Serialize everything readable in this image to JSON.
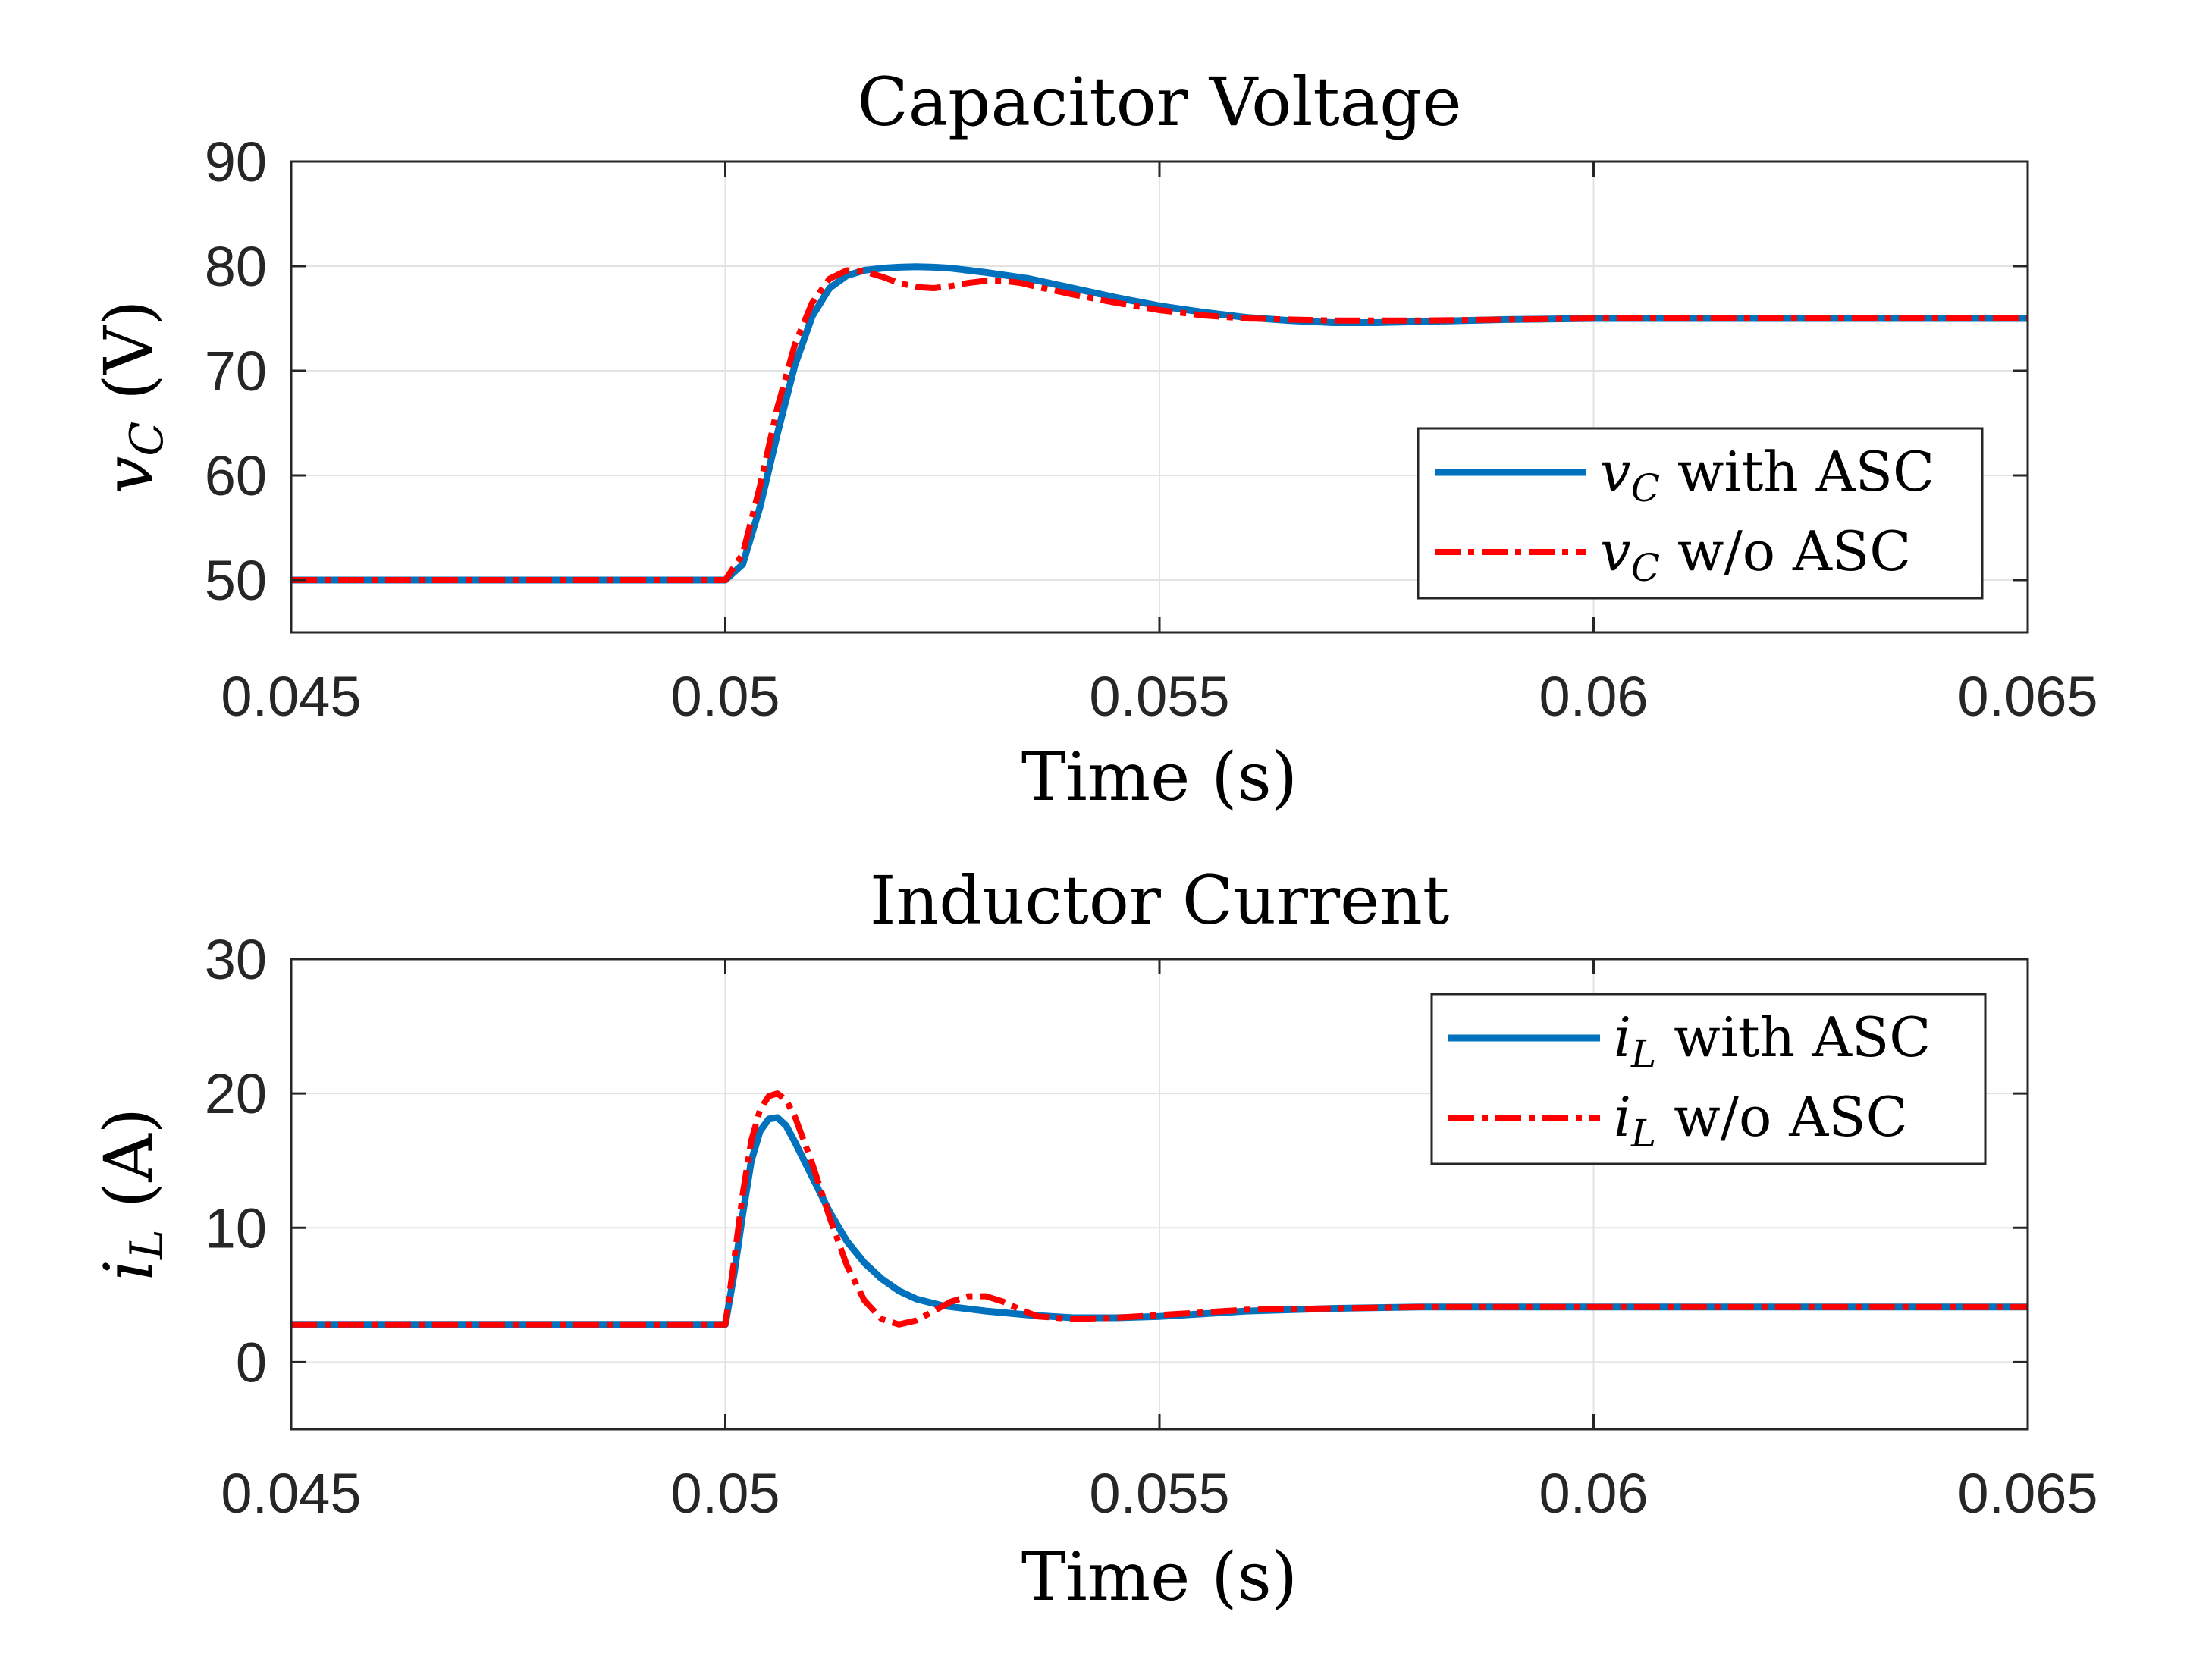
{
  "chart_data": [
    {
      "type": "line",
      "title": "Capacitor Voltage",
      "xlabel": "Time (s)",
      "ylabel_symbol": "v",
      "ylabel_subscript": "C",
      "ylabel_unit": "(V)",
      "xlim": [
        0.045,
        0.065
      ],
      "ylim": [
        45,
        90
      ],
      "xticks": [
        0.045,
        0.05,
        0.055,
        0.06,
        0.065
      ],
      "xtick_labels": [
        "0.045",
        "0.05",
        "0.055",
        "0.06",
        "0.065"
      ],
      "yticks": [
        50,
        60,
        70,
        80,
        90
      ],
      "ytick_labels": [
        "50",
        "60",
        "70",
        "80",
        "90"
      ],
      "grid": true,
      "legend_position": "lower-right",
      "series": [
        {
          "name": "with ASC",
          "symbol": "v",
          "subscript": "C",
          "label_text": "with ASC",
          "color": "#0072BD",
          "style": "solid",
          "x": [
            0.045,
            0.05,
            0.0502,
            0.0504,
            0.0506,
            0.0508,
            0.051,
            0.0512,
            0.0514,
            0.0516,
            0.0518,
            0.052,
            0.0522,
            0.0524,
            0.0526,
            0.0528,
            0.053,
            0.0535,
            0.054,
            0.0545,
            0.055,
            0.0555,
            0.056,
            0.0565,
            0.057,
            0.0575,
            0.058,
            0.059,
            0.06,
            0.062,
            0.065
          ],
          "y": [
            50,
            50,
            51.5,
            57,
            64,
            70.5,
            75.2,
            77.9,
            79.1,
            79.6,
            79.8,
            79.9,
            79.95,
            79.9,
            79.8,
            79.6,
            79.4,
            78.8,
            77.9,
            77,
            76.2,
            75.6,
            75.1,
            74.8,
            74.6,
            74.6,
            74.7,
            74.9,
            75,
            75,
            75
          ]
        },
        {
          "name": "w/o ASC",
          "symbol": "v",
          "subscript": "C",
          "label_text": "w/o ASC",
          "color": "#FF0000",
          "style": "dashdot",
          "x": [
            0.045,
            0.05,
            0.0502,
            0.0504,
            0.0506,
            0.0508,
            0.051,
            0.0512,
            0.0514,
            0.0516,
            0.0518,
            0.052,
            0.0522,
            0.0524,
            0.0526,
            0.0528,
            0.053,
            0.0532,
            0.0534,
            0.0536,
            0.054,
            0.0545,
            0.055,
            0.0555,
            0.056,
            0.057,
            0.058,
            0.06,
            0.065
          ],
          "y": [
            50,
            50,
            52.5,
            59,
            66.5,
            72.5,
            76.5,
            78.8,
            79.6,
            79.5,
            79,
            78.4,
            78,
            77.9,
            78.1,
            78.4,
            78.6,
            78.6,
            78.4,
            78,
            77.3,
            76.5,
            75.8,
            75.3,
            75,
            74.8,
            74.8,
            75,
            75
          ]
        }
      ]
    },
    {
      "type": "line",
      "title": "Inductor Current",
      "xlabel": "Time (s)",
      "ylabel_symbol": "i",
      "ylabel_subscript": "L",
      "ylabel_unit": "(A)",
      "xlim": [
        0.045,
        0.065
      ],
      "ylim": [
        -5,
        30
      ],
      "xticks": [
        0.045,
        0.05,
        0.055,
        0.06,
        0.065
      ],
      "xtick_labels": [
        "0.045",
        "0.05",
        "0.055",
        "0.06",
        "0.065"
      ],
      "yticks": [
        0,
        10,
        20,
        30
      ],
      "ytick_labels": [
        "0",
        "10",
        "20",
        "30"
      ],
      "grid": true,
      "legend_position": "top-right",
      "series": [
        {
          "name": "with ASC",
          "symbol": "i",
          "subscript": "L",
          "label_text": "with ASC",
          "color": "#0072BD",
          "style": "solid",
          "x": [
            0.045,
            0.05,
            0.0501,
            0.0502,
            0.0503,
            0.0504,
            0.0505,
            0.0506,
            0.0507,
            0.0508,
            0.051,
            0.0512,
            0.0514,
            0.0516,
            0.0518,
            0.052,
            0.0522,
            0.0525,
            0.053,
            0.0535,
            0.054,
            0.0545,
            0.055,
            0.0555,
            0.056,
            0.057,
            0.058,
            0.059,
            0.06,
            0.062,
            0.065
          ],
          "y": [
            2.8,
            2.8,
            6.5,
            11,
            15,
            17.2,
            18.1,
            18.2,
            17.6,
            16.4,
            13.8,
            11.2,
            9,
            7.4,
            6.2,
            5.3,
            4.7,
            4.2,
            3.8,
            3.5,
            3.3,
            3.3,
            3.4,
            3.6,
            3.8,
            4,
            4.1,
            4.1,
            4.1,
            4.1,
            4.1
          ]
        },
        {
          "name": "w/o ASC",
          "symbol": "i",
          "subscript": "L",
          "label_text": "w/o ASC",
          "color": "#FF0000",
          "style": "dashdot",
          "x": [
            0.045,
            0.05,
            0.0501,
            0.0502,
            0.0503,
            0.0504,
            0.0505,
            0.0506,
            0.0507,
            0.0508,
            0.051,
            0.0512,
            0.0514,
            0.0516,
            0.0518,
            0.052,
            0.0522,
            0.0524,
            0.0526,
            0.0528,
            0.053,
            0.0532,
            0.0534,
            0.0536,
            0.054,
            0.0545,
            0.055,
            0.0555,
            0.056,
            0.057,
            0.058,
            0.06,
            0.065
          ],
          "y": [
            2.8,
            2.8,
            7.5,
            12.5,
            16.5,
            18.8,
            19.8,
            20,
            19.5,
            18.3,
            14.8,
            10.8,
            7.2,
            4.6,
            3.2,
            2.8,
            3.1,
            3.8,
            4.5,
            4.9,
            4.9,
            4.5,
            3.9,
            3.4,
            3.2,
            3.3,
            3.5,
            3.7,
            3.9,
            4,
            4.1,
            4.1,
            4.1
          ]
        }
      ]
    }
  ]
}
